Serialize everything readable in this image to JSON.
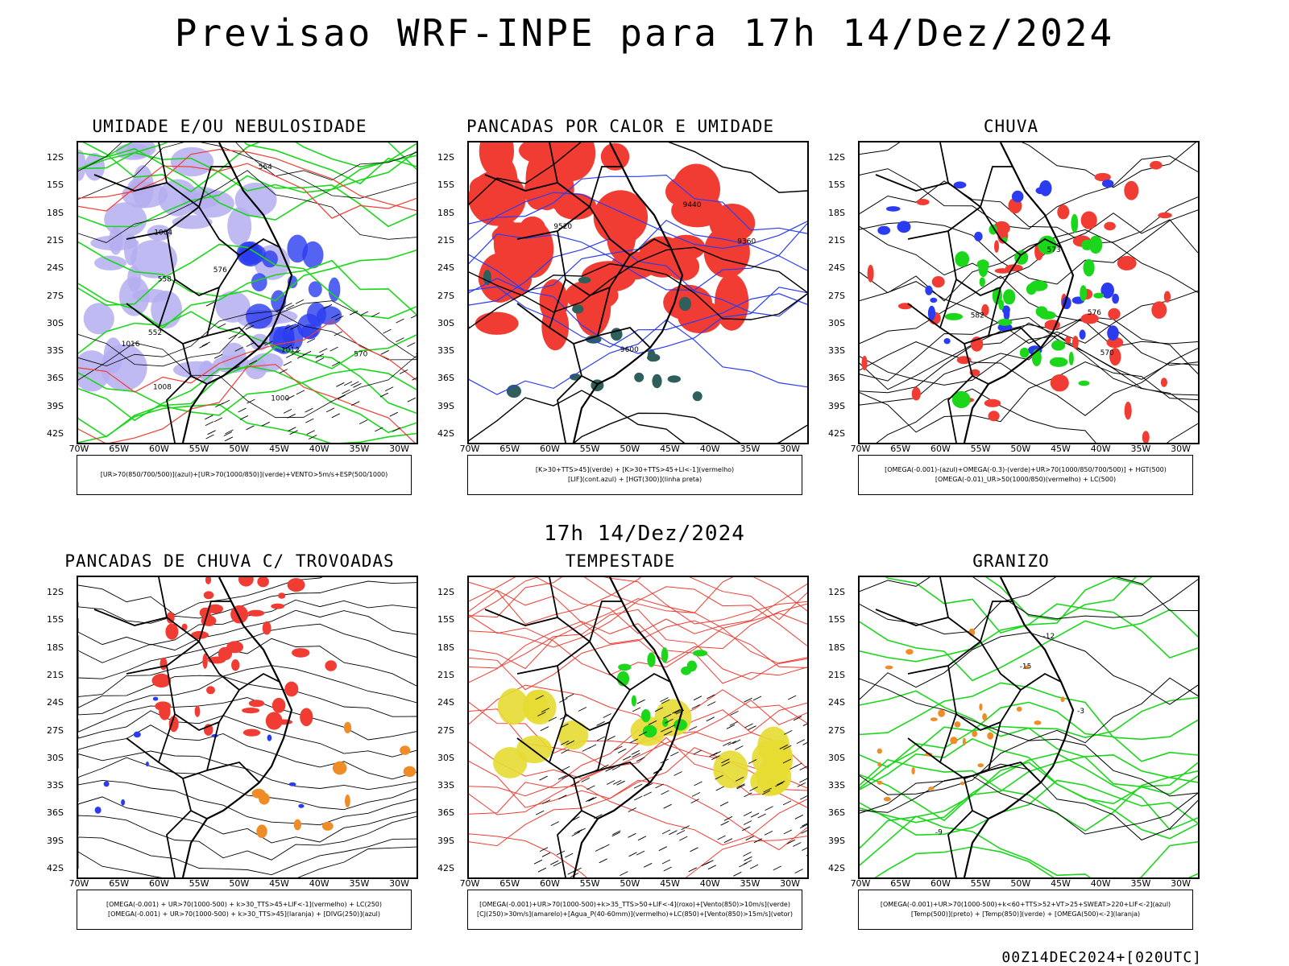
{
  "main_title": "Previsao WRF-INPE  para 17h 14/Dez/2024",
  "mid_title": "17h 14/Dez/2024",
  "footer": "00Z14DEC2024+[020UTC]",
  "axes": {
    "y_ticks": [
      "12S",
      "15S",
      "18S",
      "21S",
      "24S",
      "27S",
      "30S",
      "33S",
      "36S",
      "39S",
      "42S"
    ],
    "x_ticks": [
      "70W",
      "65W",
      "60W",
      "55W",
      "50W",
      "45W",
      "40W",
      "35W",
      "30W"
    ]
  },
  "colors": {
    "red": "#f03c32",
    "green": "#1bd61b",
    "blue": "#2b3cf0",
    "lavender": "#b4aef0",
    "orange": "#f08c28",
    "yellow": "#e6dc32",
    "teal": "#2f5f5a"
  },
  "panels": [
    {
      "title": "UMIDADE E/OU NEBULOSIDADE",
      "legend": [
        "[UR>70(850/700/500)](azul)+[UR>70(1000/850)](verde)+VENTO>5m/s+ESP(500/1000)"
      ],
      "labels": [
        "1008",
        "1012",
        "1016",
        "1004",
        "1000",
        "570",
        "576",
        "564",
        "558",
        "552"
      ]
    },
    {
      "title": "PANCADAS POR CALOR E UMIDADE",
      "legend": [
        "[K>30+TTS>45](verde) + [K>30+TTS>45+LI<-1](vermelho)",
        "[LIF](cont.azul) + [HGT(300)](linha preta)"
      ],
      "labels": [
        "9600",
        "9520",
        "9440",
        "9360"
      ]
    },
    {
      "title": "CHUVA",
      "legend": [
        "[OMEGA(-0.001)-(azul)+OMEGA(-0.3)-(verde)+UR>70(1000/850/700/500)] + HGT(500)",
        "[OMEGA(-0.01)_UR>50(1000/850)(vermelho) + LC(500)"
      ],
      "labels": [
        "576",
        "570",
        "582",
        "573"
      ]
    },
    {
      "title": "PANCADAS DE CHUVA C/ TROVOADAS",
      "legend": [
        "[OMEGA(-0.001) + UR>70(1000-500) + k>30_TTS>45+LIF<-1](vermelho) + LC(250)",
        "[OMEGA(-0.001) + UR>70(1000-500) + k>30_TTS>45](laranja) + [DIVG(250)](azul)"
      ],
      "labels": []
    },
    {
      "title": "TEMPESTADE",
      "legend": [
        "[OMEGA(-0.001)+UR>70(1000-500)+k>35_TTS>50+LIF<-4](roxo)+[Vento(850)>10m/s](verde)",
        "[CJ(250)>30m/s](amarelo)+[Agua_P(40-60mm)](vermelho)+LC(850)+[Vento(850)>15m/s](vetor)"
      ],
      "labels": []
    },
    {
      "title": "GRANIZO",
      "legend": [
        "[OMEGA(-0.001)+UR>70(1000-500)+k<60+TTS>52+VT>25+SWEAT>220+LIF<-2](azul)",
        "[Temp(500)](preto) + [Temp(850)](verde) + [OMEGA(500)<-2](laranja)"
      ],
      "labels": [
        "-12",
        "-15",
        "-9",
        "-3"
      ]
    }
  ]
}
